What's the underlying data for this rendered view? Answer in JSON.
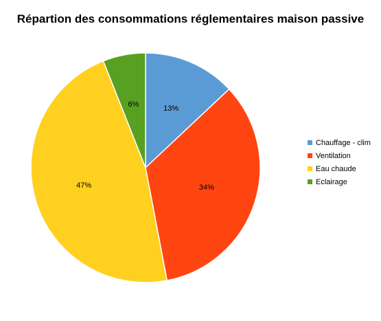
{
  "chart_data": {
    "type": "pie",
    "title": "Répartion des consommations réglementaires maison passive",
    "categories": [
      "Chauffage - clim",
      "Ventilation",
      "Eau chaude",
      "Eclairage"
    ],
    "values": [
      13,
      34,
      47,
      6
    ],
    "labels": [
      "13%",
      "34%",
      "47%",
      "6%"
    ],
    "colors": [
      "#5b9bd5",
      "#ff4511",
      "#ffd020",
      "#58a021"
    ],
    "legend": "right",
    "start_angle": "12 o'clock, clockwise"
  }
}
